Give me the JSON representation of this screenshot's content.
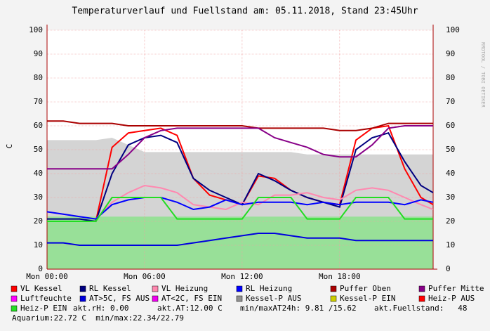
{
  "chart_data": {
    "type": "line",
    "title": "Temperaturverlauf und Fuellstand am: 05.11.2018, Stand 23:45Uhr",
    "ylabel": "C",
    "side_text": "RRDTOOL / TOBI OETIKER",
    "x": [
      0,
      1,
      2,
      3,
      4,
      5,
      6,
      7,
      8,
      9,
      10,
      11,
      12,
      13,
      14,
      15,
      16,
      17,
      18,
      19,
      20,
      21,
      22,
      23,
      23.75
    ],
    "xlim": [
      0,
      23.75
    ],
    "xticks": [
      {
        "value": 0,
        "label": "Mon 00:00"
      },
      {
        "value": 6,
        "label": "Mon 06:00"
      },
      {
        "value": 12,
        "label": "Mon 12:00"
      },
      {
        "value": 18,
        "label": "Mon 18:00"
      }
    ],
    "ylim": [
      0,
      100
    ],
    "yticks": [
      0,
      10,
      20,
      30,
      40,
      50,
      60,
      70,
      80,
      90,
      100
    ],
    "grid": true,
    "areas": [
      {
        "color": "#98e098",
        "values": [
          22,
          22,
          22,
          22,
          22,
          22,
          22,
          22,
          22,
          22,
          22,
          22,
          22,
          22,
          22,
          22,
          22,
          22,
          22,
          22,
          22,
          22,
          22,
          22,
          22
        ]
      }
    ],
    "series": [
      {
        "name": "VL Kessel",
        "color": "#ff0000",
        "values": [
          20,
          20,
          20,
          20,
          51,
          57,
          58,
          59,
          56,
          38,
          31,
          29,
          27,
          39,
          38,
          33,
          30,
          28,
          27,
          54,
          59,
          60,
          42,
          30,
          27
        ]
      },
      {
        "name": "RL Kessel",
        "color": "#000080",
        "values": [
          21,
          21,
          21,
          20,
          40,
          52,
          55,
          56,
          53,
          38,
          33,
          30,
          27,
          40,
          37,
          33,
          30,
          28,
          26,
          50,
          55,
          57,
          45,
          35,
          32
        ]
      },
      {
        "name": "VL Heizung",
        "color": "#ff88b0",
        "values": [
          24,
          23,
          22,
          21,
          28,
          32,
          35,
          34,
          32,
          27,
          26,
          25,
          28,
          27,
          31,
          31,
          32,
          30,
          29,
          33,
          34,
          33,
          30,
          27,
          25
        ]
      },
      {
        "name": "RL Heizung",
        "color": "#0000ff",
        "values": [
          24,
          23,
          22,
          21,
          27,
          29,
          30,
          30,
          28,
          25,
          26,
          29,
          27,
          28,
          28,
          28,
          27,
          28,
          27,
          28,
          28,
          28,
          27,
          29,
          28
        ]
      },
      {
        "name": "Puffer Oben",
        "color": "#aa0000",
        "values": [
          62,
          62,
          61,
          61,
          61,
          60,
          60,
          60,
          60,
          60,
          60,
          60,
          60,
          59,
          59,
          59,
          59,
          59,
          58,
          58,
          59,
          61,
          61,
          61,
          61
        ]
      },
      {
        "name": "Puffer Mitte",
        "color": "#880088",
        "values": [
          42,
          42,
          42,
          42,
          42,
          48,
          55,
          58,
          59,
          59,
          59,
          59,
          59,
          59,
          55,
          53,
          51,
          48,
          47,
          47,
          52,
          59,
          60,
          60,
          60
        ]
      },
      {
        "name": "Luftfeuchte",
        "color": "#ff00ff",
        "values": [
          null,
          null,
          null,
          null,
          null,
          null,
          null,
          null,
          null,
          null,
          null,
          null,
          null,
          null,
          null,
          null,
          null,
          null,
          null,
          null,
          null,
          null,
          null,
          null,
          null
        ]
      },
      {
        "name": "AT>5C, FS AUS",
        "color": "#0000dd",
        "values": [
          11,
          11,
          10,
          10,
          10,
          10,
          10,
          10,
          10,
          11,
          12,
          13,
          14,
          15,
          15,
          14,
          13,
          13,
          13,
          12,
          12,
          12,
          12,
          12,
          12
        ]
      },
      {
        "name": "AT<2C, FS EIN",
        "color": "#ee00ee",
        "values": [
          null,
          null,
          null,
          null,
          null,
          null,
          null,
          null,
          null,
          null,
          null,
          null,
          null,
          null,
          null,
          null,
          null,
          null,
          null,
          null,
          null,
          null,
          null,
          null,
          null
        ]
      },
      {
        "name": "Kessel-P AUS",
        "color": "#909090",
        "area": true,
        "values": [
          54,
          54,
          54,
          54,
          55,
          52,
          49,
          49,
          49,
          49,
          49,
          49,
          49,
          49,
          49,
          49,
          48,
          48,
          48,
          48,
          48,
          48,
          48,
          48,
          48
        ]
      },
      {
        "name": "Kessel-P EIN",
        "color": "#cccc00",
        "values": [
          null,
          null,
          null,
          null,
          null,
          null,
          null,
          null,
          null,
          null,
          null,
          null,
          null,
          null,
          null,
          null,
          null,
          null,
          null,
          null,
          null,
          null,
          null,
          null,
          null
        ]
      },
      {
        "name": "Heiz-P AUS",
        "color": "#ff0000",
        "values": [
          null,
          null,
          null,
          null,
          null,
          null,
          null,
          null,
          null,
          null,
          null,
          null,
          null,
          null,
          null,
          null,
          null,
          null,
          null,
          null,
          null,
          null,
          null,
          null,
          null
        ]
      },
      {
        "name": "Heiz-P EIN",
        "color": "#22dd22",
        "values": [
          20,
          20,
          20,
          20,
          30,
          30,
          30,
          30,
          21,
          21,
          21,
          21,
          21,
          30,
          30,
          30,
          21,
          21,
          21,
          30,
          30,
          30,
          21,
          21,
          21
        ]
      }
    ],
    "status": [
      "akt.rH: 0.00",
      "akt.AT:12.00 C",
      "min/maxAT24h: 9.81 /15.62",
      "akt.Fuellstand:   48"
    ],
    "footer": "Aquarium:22.72 C  min/max:22.34/22.79"
  }
}
